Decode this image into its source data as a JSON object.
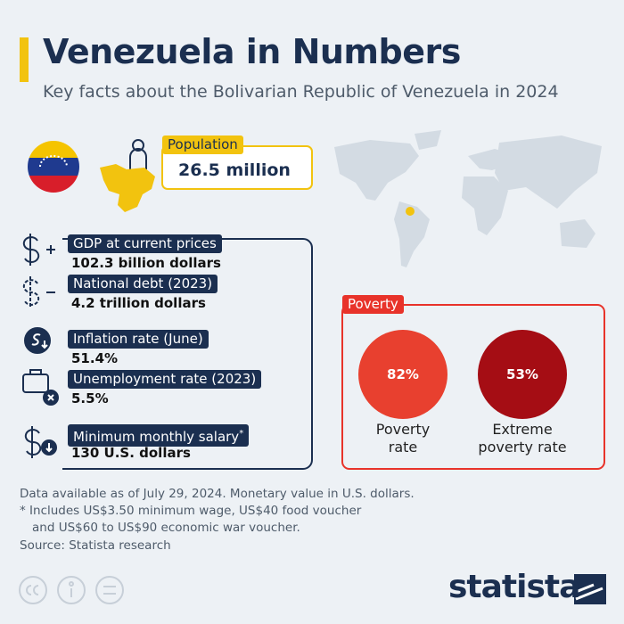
{
  "header": {
    "title": "Venezuela in Numbers",
    "subtitle": "Key facts about the Bolivarian Republic of Venezuela in 2024"
  },
  "population": {
    "label": "Population",
    "value": "26.5 million"
  },
  "economy": {
    "items": [
      {
        "label": "GDP at current prices",
        "value": "102.3 billion dollars"
      },
      {
        "label": "National debt (2023)",
        "value": "4.2 trillion dollars"
      },
      {
        "label": "Inflation rate (June)",
        "value": "51.4%"
      },
      {
        "label": "Unemployment rate (2023)",
        "value": "5.5%"
      },
      {
        "label": "Minimum monthly salary",
        "marker": "*",
        "value": "130 U.S. dollars"
      }
    ]
  },
  "poverty": {
    "title": "Poverty",
    "items": [
      {
        "value": "82%",
        "label": "Poverty rate"
      },
      {
        "value": "53%",
        "label": "Extreme poverty rate"
      }
    ]
  },
  "notes": [
    "Data available as of July 29, 2024. Monetary value in U.S. dollars.",
    "* Includes US$3.50 minimum wage, US$40 food voucher",
    "and US$60 to US$90 economic war voucher."
  ],
  "source": "Source: Statista research",
  "brand": "statista"
}
